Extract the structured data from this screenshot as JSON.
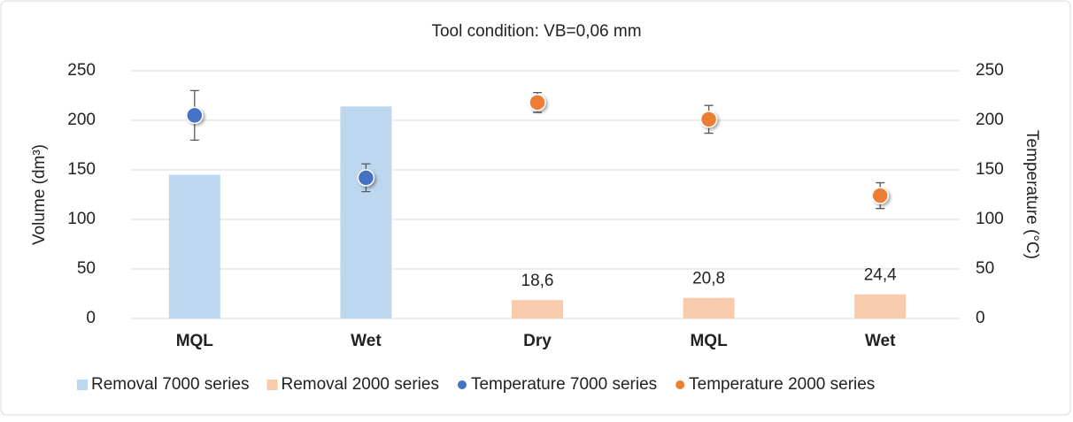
{
  "chart_data": {
    "type": "bar",
    "title": "Tool condition: VB=0,06 mm",
    "y_label": "Volume (dm³)",
    "y2_label": "Temperature (°C)",
    "categories": [
      "MQL",
      "Wet",
      "Dry",
      "MQL",
      "Wet"
    ],
    "series": [
      {
        "name": "Removal 7000 series",
        "type": "bar",
        "color": "#bdd7ee",
        "values": [
          145,
          214,
          null,
          null,
          null
        ]
      },
      {
        "name": "Removal 2000 series",
        "type": "bar",
        "color": "#f8cbad",
        "values": [
          null,
          null,
          18.6,
          20.8,
          24.4
        ],
        "value_labels": [
          null,
          null,
          "18,6",
          "20,8",
          "24,4"
        ]
      },
      {
        "name": "Temperature 7000 series",
        "type": "scatter",
        "axis": "y2",
        "color": "#4472c4",
        "values": [
          205,
          142,
          null,
          null,
          null
        ],
        "errors": [
          25,
          14,
          null,
          null,
          null
        ]
      },
      {
        "name": "Temperature 2000 series",
        "type": "scatter",
        "axis": "y2",
        "color": "#ed7d31",
        "values": [
          null,
          null,
          218,
          201,
          124
        ],
        "errors": [
          null,
          null,
          10,
          14,
          13
        ]
      }
    ],
    "ylim": [
      0,
      250
    ],
    "yticks": [
      0,
      50,
      100,
      150,
      200,
      250
    ],
    "y2lim": [
      0,
      250
    ],
    "y2ticks": [
      0,
      50,
      100,
      150,
      200,
      250
    ],
    "grid": true,
    "legend": "bottom"
  }
}
